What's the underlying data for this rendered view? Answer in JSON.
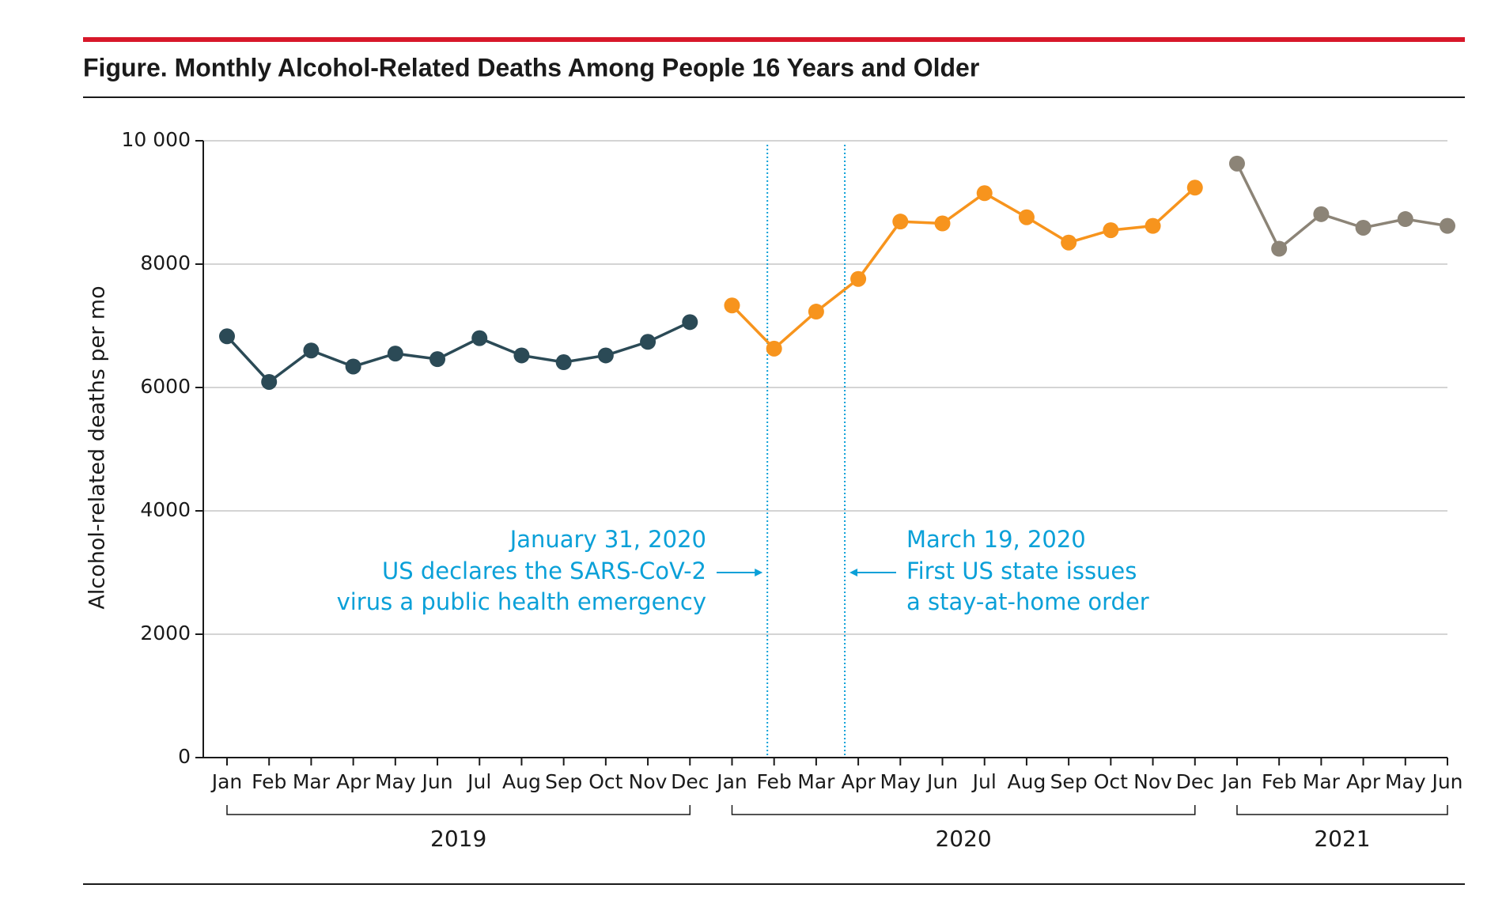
{
  "chart_data": {
    "type": "line",
    "title": "Figure. Monthly Alcohol-Related Deaths Among People 16 Years and Older",
    "ylabel": "Alcohol-related deaths per mo",
    "categories": [
      "Jan",
      "Feb",
      "Mar",
      "Apr",
      "May",
      "Jun",
      "Jul",
      "Aug",
      "Sep",
      "Oct",
      "Nov",
      "Dec",
      "Jan",
      "Feb",
      "Mar",
      "Apr",
      "May",
      "Jun",
      "Jul",
      "Aug",
      "Sep",
      "Oct",
      "Nov",
      "Dec",
      "Jan",
      "Feb",
      "Mar",
      "Apr",
      "May",
      "Jun"
    ],
    "year_labels": [
      "2019",
      "2020",
      "2021"
    ],
    "series": [
      {
        "color": "#2b4a56",
        "values": [
          6830,
          6090,
          6600,
          6340,
          6550,
          6460,
          6800,
          6520,
          6410,
          6520,
          6740,
          7060,
          null,
          null,
          null,
          null,
          null,
          null,
          null,
          null,
          null,
          null,
          null,
          null,
          null,
          null,
          null,
          null,
          null,
          null
        ]
      },
      {
        "color": "#f7941d",
        "values": [
          null,
          null,
          null,
          null,
          null,
          null,
          null,
          null,
          null,
          null,
          null,
          null,
          7330,
          6630,
          7230,
          7760,
          8690,
          8660,
          9150,
          8760,
          8350,
          8550,
          8620,
          9240,
          null,
          null,
          null,
          null,
          null,
          null
        ]
      },
      {
        "color": "#8c8477",
        "values": [
          null,
          null,
          null,
          null,
          null,
          null,
          null,
          null,
          null,
          null,
          null,
          null,
          null,
          null,
          null,
          null,
          null,
          null,
          null,
          null,
          null,
          null,
          null,
          null,
          9630,
          8250,
          8810,
          8590,
          8730,
          8620
        ]
      }
    ],
    "ylim": [
      0,
      10000
    ],
    "yticks": [
      0,
      2000,
      4000,
      6000,
      8000,
      {
        "value": 10000,
        "label": "10 000"
      }
    ],
    "grid": true,
    "annotations": [
      {
        "lines": [
          "January 31, 2020",
          "US declares the SARS-CoV-2",
          "virus a public health emergency"
        ]
      },
      {
        "lines": [
          "March 19, 2020",
          "First US state issues",
          "a stay-at-home order"
        ]
      }
    ],
    "annotation_color": "#0aa0d8"
  }
}
